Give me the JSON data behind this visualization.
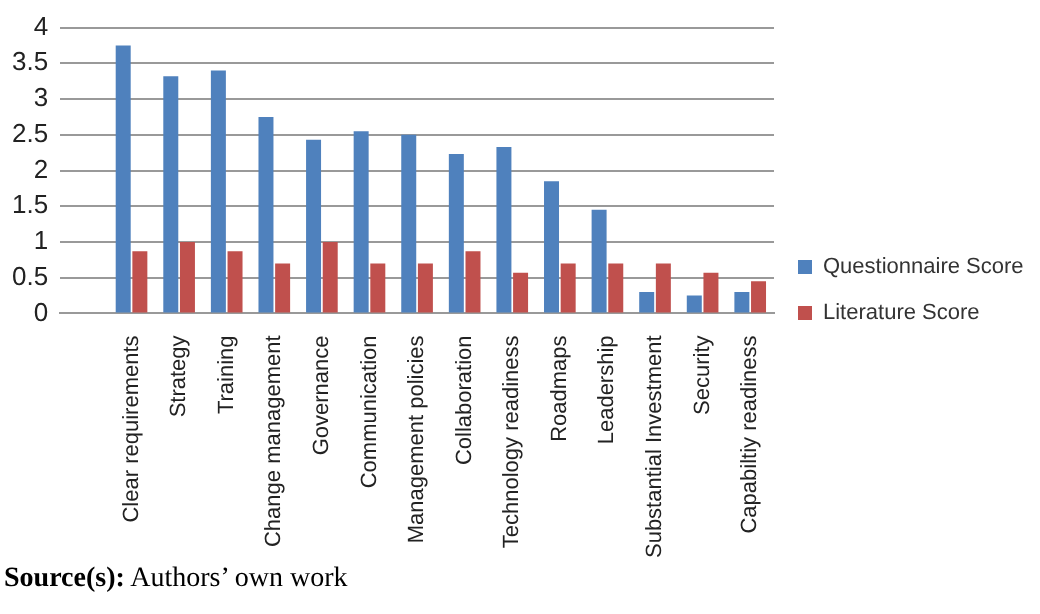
{
  "chart_data": {
    "type": "bar",
    "categories": [
      null,
      "Clear requirements",
      "Strategy",
      "Training",
      "Change management",
      "Governance",
      "Communication",
      "Management policies",
      "Collaboration",
      "Technology readiness",
      "Roadmaps",
      "Leadership",
      "Substantial Investment",
      "Security",
      "Capabiltiy readiness"
    ],
    "series": [
      {
        "name": "Questionnaire Score",
        "color": "#4f81bd",
        "values": [
          null,
          3.75,
          3.32,
          3.4,
          2.75,
          2.43,
          2.55,
          2.5,
          2.23,
          2.33,
          1.85,
          1.45,
          0.3,
          0.25,
          0.3
        ]
      },
      {
        "name": "Literature Score",
        "color": "#c0504d",
        "values": [
          null,
          0.87,
          1.0,
          0.87,
          0.7,
          1.0,
          0.7,
          0.7,
          0.87,
          0.57,
          0.7,
          0.7,
          0.7,
          0.57,
          0.45
        ]
      }
    ],
    "ylim": [
      0,
      4
    ],
    "yticks": [
      0,
      0.5,
      1,
      1.5,
      2,
      2.5,
      3,
      3.5,
      4
    ],
    "grid": "y",
    "legend": "right",
    "annotations": [
      "Source(s): Authors’ own work"
    ]
  }
}
